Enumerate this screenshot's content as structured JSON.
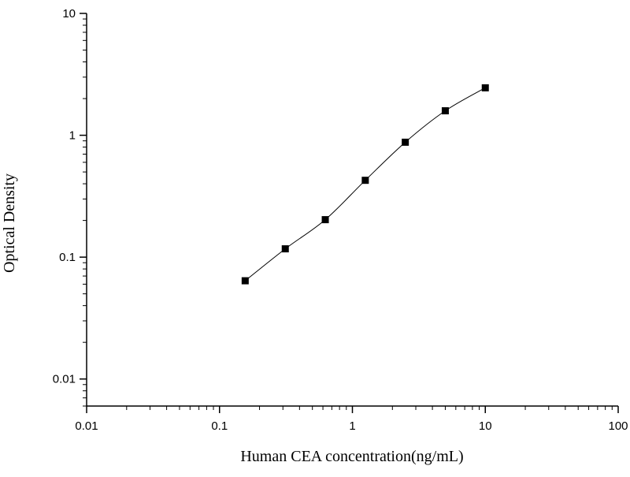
{
  "chart_data": {
    "type": "scatter",
    "title": "",
    "xlabel": "Human CEA concentration(ng/mL)",
    "ylabel": "Optical Density",
    "xscale": "log",
    "yscale": "log",
    "xlim": [
      0.01,
      100
    ],
    "ylim": [
      0.006,
      10
    ],
    "x_ticks": [
      0.01,
      0.1,
      1,
      10,
      100
    ],
    "x_tick_labels": [
      "0.01",
      "0.1",
      "1",
      "10",
      "100"
    ],
    "y_ticks": [
      0.01,
      0.1,
      1,
      10
    ],
    "y_tick_labels": [
      "0.01",
      "0.1",
      "1",
      "10"
    ],
    "grid": false,
    "legend": "none",
    "series": [
      {
        "marker": "square",
        "color": "#000000",
        "fit_curve": true,
        "x": [
          0.156,
          0.3125,
          0.625,
          1.25,
          2.5,
          5,
          10
        ],
        "y": [
          0.064,
          0.117,
          0.203,
          0.427,
          0.877,
          1.588,
          2.452
        ]
      }
    ]
  }
}
